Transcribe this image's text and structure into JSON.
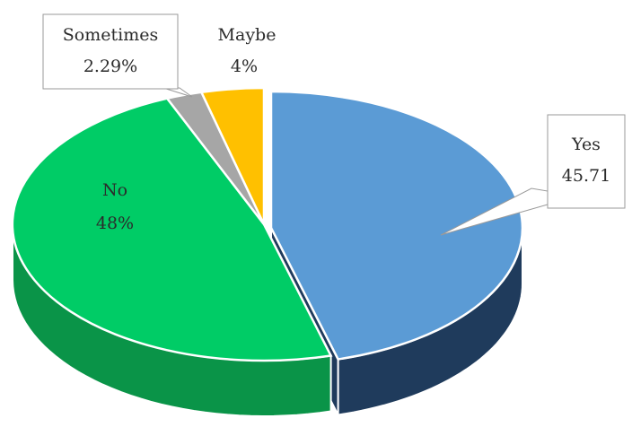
{
  "chart_data": {
    "type": "pie",
    "title": "",
    "three_d": true,
    "slices": [
      {
        "label": "Yes",
        "value": 45.71,
        "value_text": "45.71",
        "color": "#5b9bd5",
        "side_color": "#1f3b5c"
      },
      {
        "label": "No",
        "value": 48,
        "value_text": "48%",
        "color": "#00cc66",
        "side_color": "#0a9448"
      },
      {
        "label": "Sometimes",
        "value": 2.29,
        "value_text": "2.29%",
        "color": "#a6a6a6",
        "side_color": "#7a7a7a"
      },
      {
        "label": "Maybe",
        "value": 4,
        "value_text": "4%",
        "color": "#ffc000",
        "side_color": "#b8860b"
      }
    ],
    "legend": "none",
    "label_style": "data-callouts"
  }
}
